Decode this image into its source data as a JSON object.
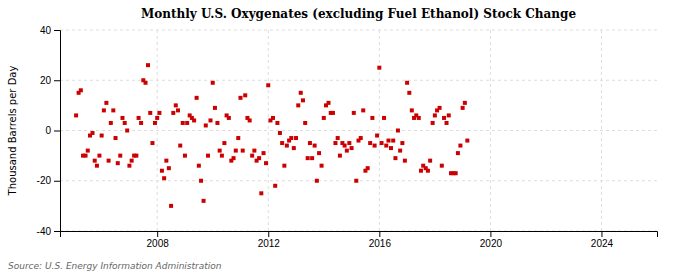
{
  "chart_data": {
    "type": "scatter",
    "title": "Monthly U.S. Oxygenates (excluding Fuel Ethanol) Stock Change",
    "ylabel": "Thousand Barrels per Day",
    "source": "Source: U.S. Energy Information Administration",
    "color": "#cc0000",
    "marker": "square",
    "grid": true,
    "xlim": [
      2004.5,
      2026
    ],
    "xticks": [
      2008,
      2012,
      2016,
      2020,
      2024
    ],
    "ylim": [
      -40,
      40
    ],
    "yticks": [
      -40,
      -20,
      0,
      20,
      40
    ],
    "x": [
      2005.08,
      2005.17,
      2005.25,
      2005.33,
      2005.42,
      2005.5,
      2005.58,
      2005.67,
      2005.75,
      2005.83,
      2005.92,
      2006.0,
      2006.08,
      2006.17,
      2006.25,
      2006.33,
      2006.42,
      2006.5,
      2006.58,
      2006.67,
      2006.75,
      2006.83,
      2006.92,
      2007.0,
      2007.08,
      2007.17,
      2007.25,
      2007.33,
      2007.42,
      2007.5,
      2007.58,
      2007.67,
      2007.75,
      2007.83,
      2007.92,
      2008.0,
      2008.08,
      2008.17,
      2008.25,
      2008.33,
      2008.42,
      2008.5,
      2008.58,
      2008.67,
      2008.75,
      2008.83,
      2008.92,
      2009.0,
      2009.08,
      2009.17,
      2009.25,
      2009.33,
      2009.42,
      2009.5,
      2009.58,
      2009.67,
      2009.75,
      2009.83,
      2009.92,
      2010.0,
      2010.08,
      2010.17,
      2010.25,
      2010.33,
      2010.42,
      2010.5,
      2010.58,
      2010.67,
      2010.75,
      2010.83,
      2010.92,
      2011.0,
      2011.08,
      2011.17,
      2011.25,
      2011.33,
      2011.42,
      2011.5,
      2011.58,
      2011.67,
      2011.75,
      2011.83,
      2011.92,
      2012.0,
      2012.08,
      2012.17,
      2012.25,
      2012.33,
      2012.42,
      2012.5,
      2012.58,
      2012.67,
      2012.75,
      2012.83,
      2012.92,
      2013.0,
      2013.08,
      2013.17,
      2013.25,
      2013.33,
      2013.42,
      2013.5,
      2013.58,
      2013.67,
      2013.75,
      2013.83,
      2013.92,
      2014.0,
      2014.08,
      2014.17,
      2014.25,
      2014.33,
      2014.42,
      2014.5,
      2014.58,
      2014.67,
      2014.75,
      2014.83,
      2014.92,
      2015.0,
      2015.08,
      2015.17,
      2015.25,
      2015.33,
      2015.42,
      2015.5,
      2015.58,
      2015.67,
      2015.75,
      2015.83,
      2015.92,
      2016.0,
      2016.08,
      2016.17,
      2016.25,
      2016.33,
      2016.42,
      2016.5,
      2016.58,
      2016.67,
      2016.75,
      2016.83,
      2016.92,
      2017.0,
      2017.08,
      2017.17,
      2017.25,
      2017.33,
      2017.42,
      2017.5,
      2017.58,
      2017.67,
      2017.75,
      2017.83,
      2017.92,
      2018.0,
      2018.08,
      2018.17,
      2018.25,
      2018.33,
      2018.42,
      2018.5,
      2018.58,
      2018.67,
      2018.75,
      2018.83,
      2018.92,
      2019.0,
      2019.08,
      2019.17
    ],
    "values": [
      6,
      15,
      16,
      -10,
      -10,
      -8,
      -2,
      -1,
      -12,
      -14,
      -10,
      -2,
      8,
      11,
      -12,
      3,
      8,
      -3,
      -13,
      -10,
      5,
      3,
      0,
      -14,
      -12,
      -10,
      -10,
      5,
      3,
      20,
      19,
      26,
      7,
      -5,
      3,
      5,
      7,
      -16,
      -19,
      -12,
      -15,
      -30,
      7,
      10,
      8,
      -6,
      3,
      -10,
      3,
      6,
      5,
      4,
      13,
      -14,
      -20,
      -28,
      2,
      -10,
      4,
      19,
      9,
      3,
      -8,
      -10,
      -5,
      6,
      5,
      -12,
      -11,
      -8,
      -3,
      13,
      -8,
      14,
      5,
      4,
      -10,
      -8,
      -12,
      -11,
      -25,
      -9,
      -13,
      18,
      4,
      5,
      -22,
      3,
      -1,
      -5,
      -14,
      -6,
      -4,
      -3,
      -7,
      -3,
      10,
      15,
      12,
      3,
      -11,
      -5,
      -11,
      -6,
      -20,
      -9,
      -14,
      5,
      10,
      11,
      7,
      7,
      -5,
      -3,
      -10,
      -5,
      -6,
      -8,
      -5,
      -7,
      7,
      -20,
      -4,
      -3,
      8,
      -16,
      -15,
      -5,
      5,
      -6,
      -2,
      25,
      -5,
      5,
      -6,
      -4,
      -7,
      -4,
      -11,
      0,
      -8,
      -5,
      -12,
      19,
      15,
      8,
      5,
      6,
      5,
      -16,
      -14,
      -15,
      -16,
      -12,
      3,
      6,
      8,
      9,
      -14,
      5,
      3,
      6,
      -17,
      -17,
      -17,
      -9,
      -6,
      9,
      11,
      -4
    ]
  }
}
